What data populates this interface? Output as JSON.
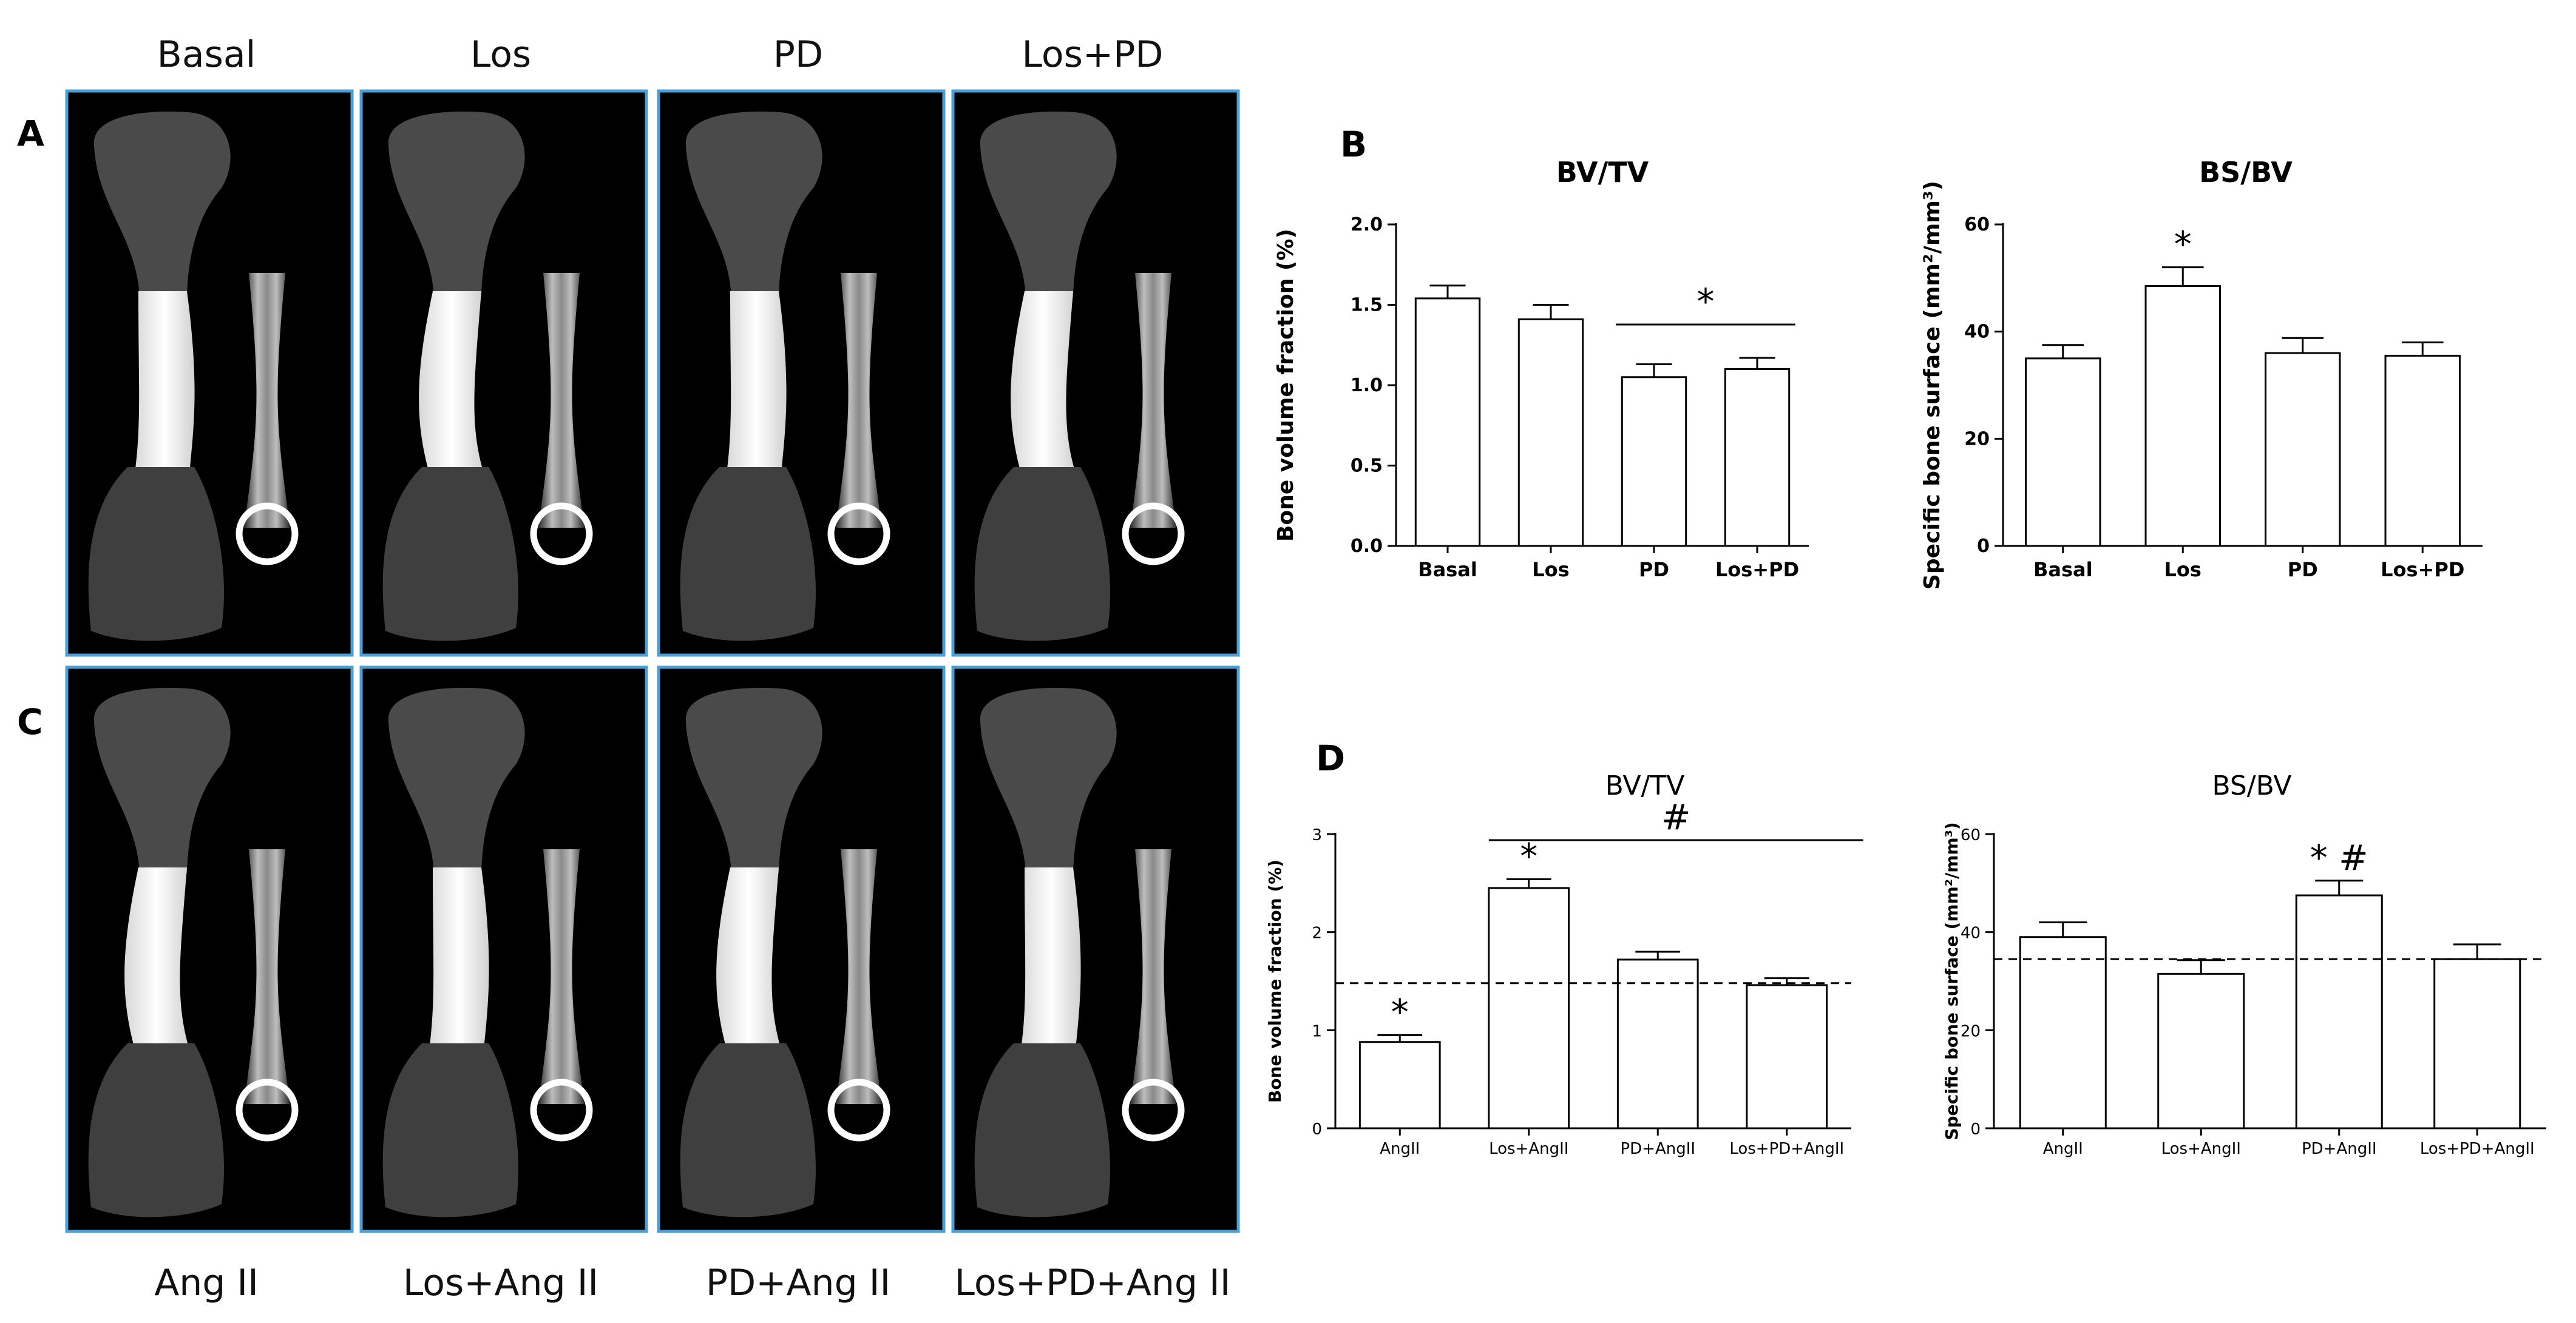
{
  "images": {
    "top_labels": [
      "Basal",
      "Los",
      "PD",
      "Los+PD"
    ],
    "bottom_labels": [
      "Ang II",
      "Los+Ang II",
      "PD+Ang II",
      "Los+PD+Ang II"
    ],
    "panel_letters": [
      "A",
      "C"
    ],
    "panel_border_color": "#4a9fd6",
    "panel_background": "#000000"
  },
  "chart_data": [
    {
      "panel": "B",
      "type": "bar",
      "title": "BV/TV",
      "ylabel": "Bone volume fraction (%)",
      "categories": [
        "Basal",
        "Los",
        "PD",
        "Los+PD"
      ],
      "values": [
        1.54,
        1.41,
        1.05,
        1.1
      ],
      "errors": [
        0.08,
        0.09,
        0.08,
        0.07
      ],
      "ylim": [
        0,
        2.0
      ],
      "yticks": [
        "0.0",
        "0.5",
        "1.0",
        "1.5",
        "2.0"
      ],
      "annotations": [
        {
          "text": "*",
          "bracket": [
            "PD",
            "Los+PD"
          ]
        }
      ],
      "baseline": null
    },
    {
      "panel": "",
      "type": "bar",
      "title": "BS/BV",
      "ylabel": "Specific bone surface (mm²/mm³)",
      "categories": [
        "Basal",
        "Los",
        "PD",
        "Los+PD"
      ],
      "values": [
        35,
        48.5,
        36,
        35.5
      ],
      "errors": [
        2.5,
        3.5,
        2.8,
        2.5
      ],
      "ylim": [
        0,
        60
      ],
      "yticks": [
        "0",
        "20",
        "40",
        "60"
      ],
      "annotations": [
        {
          "text": "*",
          "over": "Los"
        }
      ],
      "baseline": null
    },
    {
      "panel": "D",
      "type": "bar",
      "title": "BV/TV",
      "ylabel": "Bone volume fraction (%)",
      "categories": [
        "AngII",
        "Los+AngII",
        "PD+AngII",
        "Los+PD+AngII"
      ],
      "values": [
        0.88,
        2.45,
        1.72,
        1.46
      ],
      "errors": [
        0.07,
        0.09,
        0.08,
        0.07
      ],
      "ylim": [
        0,
        3
      ],
      "yticks": [
        "0",
        "1",
        "2",
        "3"
      ],
      "annotations": [
        {
          "text": "*",
          "over": "AngII"
        },
        {
          "text": "*",
          "over": "Los+AngII"
        },
        {
          "text": "#",
          "bracket": [
            "Los+AngII",
            "Los+PD+AngII"
          ]
        }
      ],
      "baseline": 1.48
    },
    {
      "panel": "",
      "type": "bar",
      "title": "BS/BV",
      "ylabel": "Specific bone surface (mm²/mm³)",
      "categories": [
        "AngII",
        "Los+AngII",
        "PD+AngII",
        "Los+PD+AngII"
      ],
      "values": [
        39,
        31.5,
        47.5,
        34.5
      ],
      "errors": [
        3.0,
        2.8,
        3.0,
        3.0
      ],
      "ylim": [
        0,
        60
      ],
      "yticks": [
        "0",
        "20",
        "40",
        "60"
      ],
      "annotations": [
        {
          "text": "* #",
          "over": "PD+AngII"
        }
      ],
      "baseline": 34.5
    }
  ]
}
